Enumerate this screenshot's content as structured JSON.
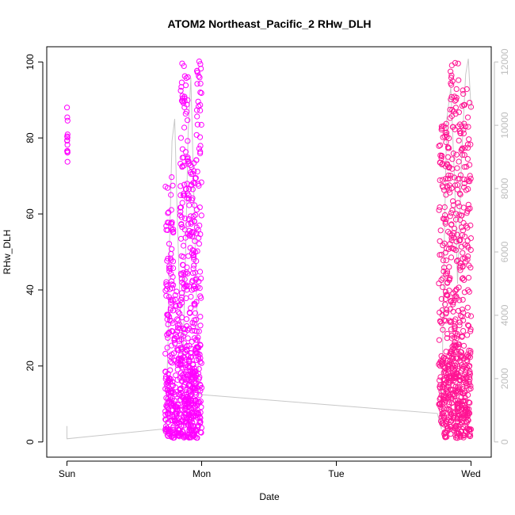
{
  "chart_data": {
    "type": "scatter",
    "title": "ATOM2 Northeast_Pacific_2 RHw_DLH",
    "xlabel": "Date",
    "ylabel": "RHw_DLH",
    "x_ticks": [
      {
        "label": "Sun",
        "value": 0
      },
      {
        "label": "Mon",
        "value": 1
      },
      {
        "label": "Tue",
        "value": 2
      },
      {
        "label": "Wed",
        "value": 3
      }
    ],
    "xlim": [
      -0.15,
      3.15
    ],
    "ylim": [
      -4,
      104
    ],
    "y_ticks": [
      0,
      20,
      40,
      60,
      80,
      100
    ],
    "y2lim": [
      -480,
      12480
    ],
    "y2_ticks": [
      0,
      2000,
      4000,
      6000,
      8000,
      10000,
      12000
    ],
    "grid": false,
    "colors": {
      "series_magenta": "#ff00ff",
      "series_pink": "#ff1493",
      "secondary_line": "#c8c8c8",
      "secondary_axis": "#bdbdbd"
    },
    "secondary_series": {
      "name": "",
      "points": [
        [
          0.0,
          500
        ],
        [
          0.0,
          100
        ],
        [
          0.7,
          400
        ],
        [
          0.73,
          280
        ],
        [
          0.75,
          3000
        ],
        [
          0.76,
          6000
        ],
        [
          0.78,
          9500
        ],
        [
          0.8,
          10200
        ],
        [
          0.82,
          7000
        ],
        [
          0.84,
          4200
        ],
        [
          0.86,
          2500
        ],
        [
          0.88,
          5800
        ],
        [
          0.9,
          9800
        ],
        [
          0.92,
          11500
        ],
        [
          0.95,
          6500
        ],
        [
          0.98,
          1500
        ],
        [
          2.75,
          900
        ],
        [
          2.78,
          400
        ],
        [
          2.8,
          6000
        ],
        [
          2.82,
          10200
        ],
        [
          2.85,
          11200
        ],
        [
          2.88,
          8000
        ],
        [
          2.9,
          5000
        ],
        [
          2.93,
          9000
        ],
        [
          2.96,
          11600
        ],
        [
          2.98,
          12100
        ],
        [
          3.0,
          10500
        ]
      ]
    },
    "series": [
      {
        "name": "",
        "clusters": [
          {
            "x_start": 0.0,
            "x_end": 0.005,
            "y_min": 73,
            "y_max": 90,
            "count": 14,
            "color": "#ff00ff"
          },
          {
            "x_start": 0.73,
            "x_end": 0.79,
            "y_min": 1,
            "y_max": 70,
            "count": 160,
            "color": "#ff00ff"
          },
          {
            "x_start": 0.79,
            "x_end": 0.84,
            "y_min": 1,
            "y_max": 40,
            "count": 90,
            "color": "#ff00ff"
          },
          {
            "x_start": 0.84,
            "x_end": 0.9,
            "y_min": 1,
            "y_max": 100,
            "count": 200,
            "color": "#ff00ff"
          },
          {
            "x_start": 0.9,
            "x_end": 0.96,
            "y_min": 1,
            "y_max": 75,
            "count": 220,
            "color": "#ff00ff"
          },
          {
            "x_start": 0.96,
            "x_end": 1.0,
            "y_min": 1,
            "y_max": 101,
            "count": 110,
            "color": "#ff00ff"
          },
          {
            "x_start": 2.76,
            "x_end": 2.84,
            "y_min": 1,
            "y_max": 85,
            "count": 220,
            "color": "#ff1493"
          },
          {
            "x_start": 2.84,
            "x_end": 2.92,
            "y_min": 1,
            "y_max": 100,
            "count": 260,
            "color": "#ff1493"
          },
          {
            "x_start": 2.92,
            "x_end": 3.0,
            "y_min": 1,
            "y_max": 94,
            "count": 230,
            "color": "#ff1493"
          }
        ]
      }
    ]
  }
}
